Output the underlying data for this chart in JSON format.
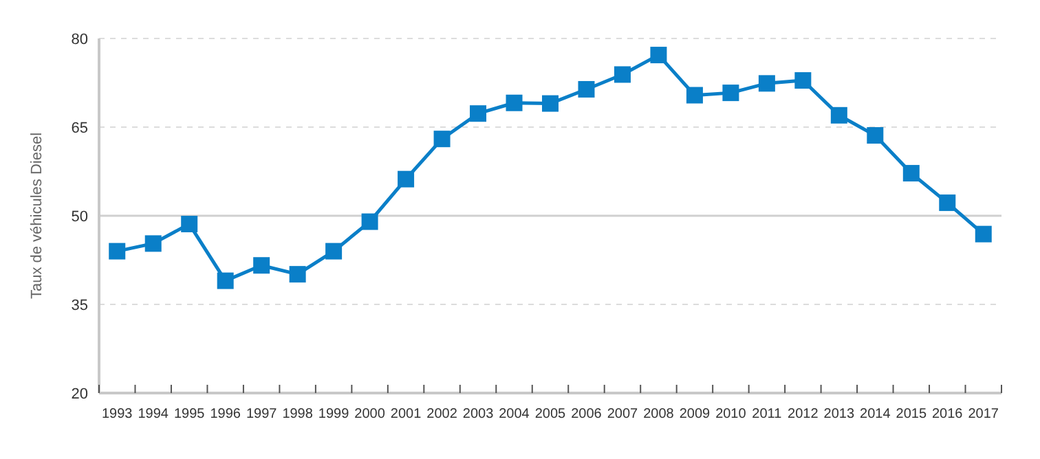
{
  "chart_data": {
    "type": "line",
    "ylabel": "Taux de véhicules Diesel",
    "categories": [
      "1993",
      "1994",
      "1995",
      "1996",
      "1997",
      "1998",
      "1999",
      "2000",
      "2001",
      "2002",
      "2003",
      "2004",
      "2005",
      "2006",
      "2007",
      "2008",
      "2009",
      "2010",
      "2011",
      "2012",
      "2013",
      "2014",
      "2015",
      "2016",
      "2017"
    ],
    "series": [
      {
        "color": "#0a7fc8",
        "values": [
          44.0,
          45.3,
          48.6,
          39.0,
          41.6,
          40.1,
          44.0,
          49.0,
          56.2,
          63.0,
          67.3,
          69.1,
          69.0,
          71.4,
          73.9,
          77.2,
          70.4,
          70.8,
          72.4,
          72.9,
          67.0,
          63.6,
          57.2,
          52.2,
          46.9
        ]
      }
    ],
    "ylim": [
      20,
      80
    ],
    "yticks": [
      20,
      35,
      50,
      65,
      80
    ],
    "grid": "y",
    "marker": "square",
    "ref_lines": [
      {
        "axis": "y",
        "value": 50,
        "color": "#d0d0d0",
        "line_style": "solid"
      }
    ]
  }
}
